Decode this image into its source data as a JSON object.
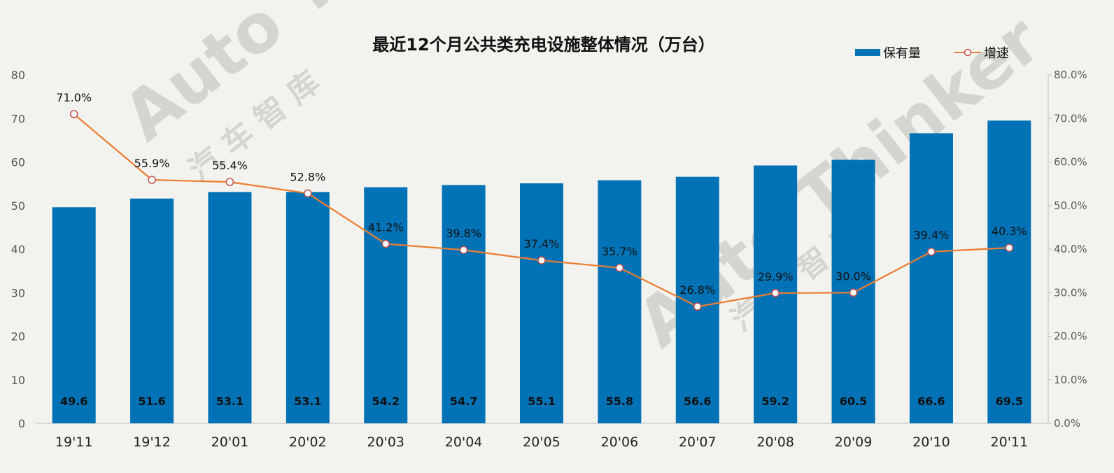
{
  "chart_data": {
    "type": "bar",
    "title": "最近12个月公共类充电设施整体情况（万台）",
    "categories": [
      "19'11",
      "19'12",
      "20'01",
      "20'02",
      "20'03",
      "20'04",
      "20'05",
      "20'06",
      "20'07",
      "20'08",
      "20'09",
      "20'10",
      "20'11"
    ],
    "series": [
      {
        "name": "保有量",
        "type": "bar",
        "axis": "left",
        "values": [
          49.6,
          51.6,
          53.1,
          53.1,
          54.2,
          54.7,
          55.1,
          55.8,
          56.6,
          59.2,
          60.5,
          66.6,
          69.5
        ],
        "labels": [
          "49.6",
          "51.6",
          "53.1",
          "53.1",
          "54.2",
          "54.7",
          "55.1",
          "55.8",
          "56.6",
          "59.2",
          "60.5",
          "66.6",
          "69.5"
        ]
      },
      {
        "name": "增速",
        "type": "line",
        "axis": "right",
        "values": [
          71.0,
          55.9,
          55.4,
          52.8,
          41.2,
          39.8,
          37.4,
          35.7,
          26.8,
          29.9,
          30.0,
          39.4,
          40.3
        ],
        "labels": [
          "71.0%",
          "55.9%",
          "55.4%",
          "52.8%",
          "41.2%",
          "39.8%",
          "37.4%",
          "35.7%",
          "26.8%",
          "29.9%",
          "30.0%",
          "39.4%",
          "40.3%"
        ]
      }
    ],
    "y_left": {
      "min": 0,
      "max": 80,
      "ticks": [
        "0",
        "10",
        "20",
        "30",
        "40",
        "50",
        "60",
        "70",
        "80"
      ]
    },
    "y_right": {
      "min": 0,
      "max": 80,
      "ticks": [
        "0.0%",
        "10.0%",
        "20.0%",
        "30.0%",
        "40.0%",
        "50.0%",
        "60.0%",
        "70.0%",
        "80.0%"
      ]
    },
    "grid": false,
    "legend_position": "top-right",
    "colors": {
      "bar": "#0072b5",
      "line": "#ed7d31",
      "marker_fill": "#ffffff",
      "marker_stroke": "#c0504d",
      "background": "#f2f2ee"
    }
  },
  "watermark": {
    "logo_text": "Auto Thinker",
    "cn_text": "汽 车 智 库"
  }
}
